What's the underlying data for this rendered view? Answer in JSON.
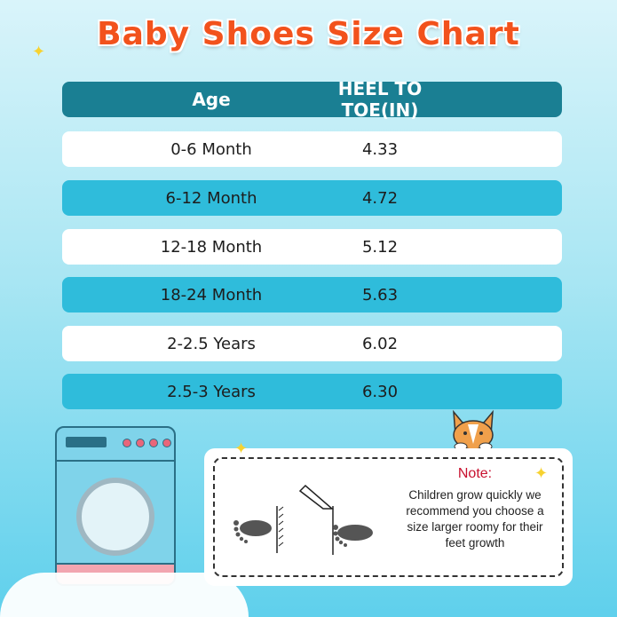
{
  "title": "Baby Shoes Size Chart",
  "table": {
    "headers": [
      "Age",
      "HEEL TO TOE(IN)"
    ],
    "rows": [
      {
        "age": "0-6 Month",
        "heel_to_toe": "4.33"
      },
      {
        "age": "6-12 Month",
        "heel_to_toe": "4.72"
      },
      {
        "age": "12-18 Month",
        "heel_to_toe": "5.12"
      },
      {
        "age": "18-24 Month",
        "heel_to_toe": "5.63"
      },
      {
        "age": "2-2.5 Years",
        "heel_to_toe": "6.02"
      },
      {
        "age": "2.5-3 Years",
        "heel_to_toe": "6.30"
      }
    ]
  },
  "note": {
    "title": "Note:",
    "text": "Children grow quickly we recommend you choose a size larger roomy for their feet growth"
  },
  "colors": {
    "title": "#f2521c",
    "header": "#1a7f93",
    "row_alt": "#2fbcdb",
    "note_title": "#c8102e"
  }
}
